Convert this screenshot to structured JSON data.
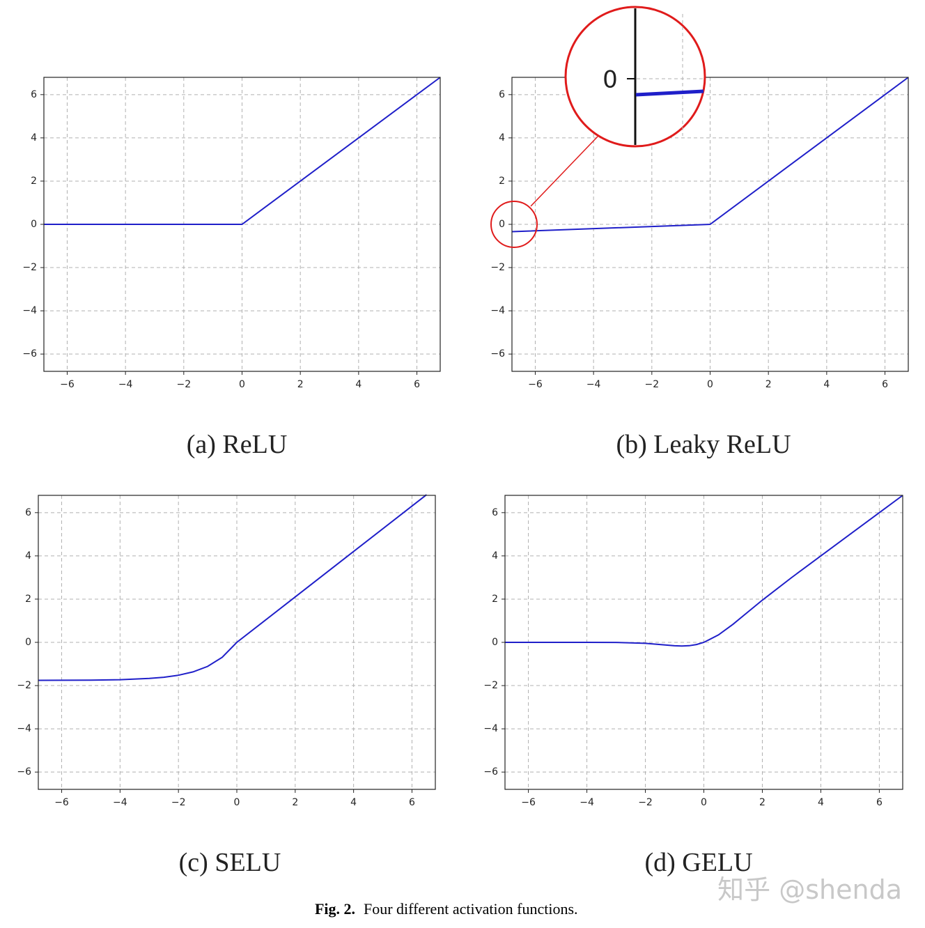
{
  "chart_data": [
    {
      "type": "line",
      "caption": "(a) ReLU",
      "color": "#1f1fc9",
      "x": [
        -6.8,
        0,
        6.8
      ],
      "values": [
        0,
        0,
        6.8
      ],
      "xlim": [
        -6.8,
        6.8
      ],
      "ylim": [
        -6.8,
        6.8
      ],
      "grid": true,
      "xticks": [
        {
          "value": -6,
          "label": "−6"
        },
        {
          "value": -4,
          "label": "−4"
        },
        {
          "value": -2,
          "label": "−2"
        },
        0,
        2,
        4,
        6
      ],
      "yticks": [
        {
          "value": -6,
          "label": "−6"
        },
        {
          "value": -4,
          "label": "−4"
        },
        {
          "value": -2,
          "label": "−2"
        },
        0,
        2,
        4,
        6
      ]
    },
    {
      "type": "line",
      "caption": "(b) Leaky ReLU",
      "color": "#1f1fc9",
      "annotation": "0",
      "x": [
        -6.8,
        0,
        6.8
      ],
      "values": [
        -0.34,
        0,
        6.8
      ],
      "xlim": [
        -6.8,
        6.8
      ],
      "ylim": [
        -6.8,
        6.8
      ],
      "grid": true,
      "xticks": [
        {
          "value": -6,
          "label": "−6"
        },
        {
          "value": -4,
          "label": "−4"
        },
        {
          "value": -2,
          "label": "−2"
        },
        0,
        2,
        4,
        6
      ],
      "yticks": [
        {
          "value": -6,
          "label": "−6"
        },
        {
          "value": -4,
          "label": "−4"
        },
        {
          "value": -2,
          "label": "−2"
        },
        0,
        2,
        4,
        6
      ]
    },
    {
      "type": "line",
      "caption": "(c) SELU",
      "color": "#1f1fc9",
      "x": [
        -6.8,
        -6,
        -5,
        -4,
        -3,
        -2.5,
        -2,
        -1.5,
        -1,
        -0.5,
        0,
        2,
        4,
        6.5
      ],
      "values": [
        -1.756,
        -1.754,
        -1.746,
        -1.726,
        -1.67,
        -1.614,
        -1.52,
        -1.366,
        -1.111,
        -0.692,
        0,
        2.101,
        4.203,
        6.83
      ],
      "xlim": [
        -6.8,
        6.8
      ],
      "ylim": [
        -6.8,
        6.8
      ],
      "grid": true,
      "xticks": [
        {
          "value": -6,
          "label": "−6"
        },
        {
          "value": -4,
          "label": "−4"
        },
        {
          "value": -2,
          "label": "−2"
        },
        0,
        2,
        4,
        6
      ],
      "yticks": [
        {
          "value": -6,
          "label": "−6"
        },
        {
          "value": -4,
          "label": "−4"
        },
        {
          "value": -2,
          "label": "−2"
        },
        0,
        2,
        4,
        6
      ]
    },
    {
      "type": "line",
      "caption": "(d) GELU",
      "color": "#1f1fc9",
      "x": [
        -6.8,
        -4,
        -3,
        -2,
        -1.5,
        -1,
        -0.75,
        -0.5,
        -0.25,
        0,
        0.5,
        1,
        1.5,
        2,
        3,
        4,
        6.8
      ],
      "values": [
        0,
        -0.0001,
        -0.004,
        -0.0455,
        -0.1002,
        -0.1587,
        -0.17,
        -0.1543,
        -0.1003,
        0,
        0.3457,
        0.8413,
        1.3998,
        1.9545,
        2.996,
        3.9999,
        6.8
      ],
      "xlim": [
        -6.8,
        6.8
      ],
      "ylim": [
        -6.8,
        6.8
      ],
      "grid": true,
      "xticks": [
        {
          "value": -6,
          "label": "−6"
        },
        {
          "value": -4,
          "label": "−4"
        },
        {
          "value": -2,
          "label": "−2"
        },
        0,
        2,
        4,
        6
      ],
      "yticks": [
        {
          "value": -6,
          "label": "−6"
        },
        {
          "value": -4,
          "label": "−4"
        },
        {
          "value": -2,
          "label": "−2"
        },
        0,
        2,
        4,
        6
      ]
    }
  ],
  "figure_caption": {
    "label": "Fig. 2.",
    "text": "Four different activation functions."
  },
  "watermark": "知乎 @shenda"
}
